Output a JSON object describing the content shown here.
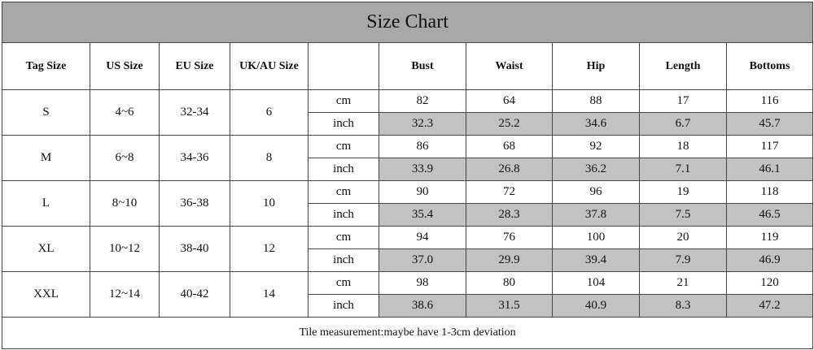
{
  "title": "Size Chart",
  "table": {
    "header": [
      "Tag Size",
      "US Size",
      "EU Size",
      "UK/AU Size",
      "Bust",
      "Waist",
      "Hip",
      "Length",
      "Bottoms"
    ],
    "rows": [
      {
        "cells": [
          "S",
          "4~6",
          "32-34",
          "6"
        ],
        "cm": [
          "cm",
          "82",
          "64",
          "88",
          "17",
          "116"
        ],
        "inch": [
          "inch",
          "32.3",
          "25.2",
          "34.6",
          "6.7",
          "45.7"
        ]
      },
      {
        "cells": [
          "M",
          "6~8",
          "34-36",
          "8"
        ],
        "cm": [
          "cm",
          "86",
          "68",
          "92",
          "18",
          "117"
        ],
        "inch": [
          "inch",
          "33.9",
          "26.8",
          "36.2",
          "7.1",
          "46.1"
        ]
      },
      {
        "cells": [
          "L",
          "8~10",
          "36-38",
          "10"
        ],
        "cm": [
          "cm",
          "90",
          "72",
          "96",
          "19",
          "118"
        ],
        "inch": [
          "inch",
          "35.4",
          "28.3",
          "37.8",
          "7.5",
          "46.5"
        ]
      },
      {
        "cells": [
          "XL",
          "10~12",
          "38-40",
          "12"
        ],
        "cm": [
          "cm",
          "94",
          "76",
          "100",
          "20",
          "119"
        ],
        "inch": [
          "inch",
          "37.0",
          "29.9",
          "39.4",
          "7.9",
          "46.9"
        ]
      },
      {
        "cells": [
          "XXL",
          "12~14",
          "40-42",
          "14"
        ],
        "cm": [
          "cm",
          "98",
          "80",
          "104",
          "21",
          "120"
        ],
        "inch": [
          "inch",
          "38.6",
          "31.5",
          "40.9",
          "8.3",
          "47.2"
        ]
      }
    ]
  },
  "footer": "Tile measurement:maybe have 1-3cm deviation"
}
